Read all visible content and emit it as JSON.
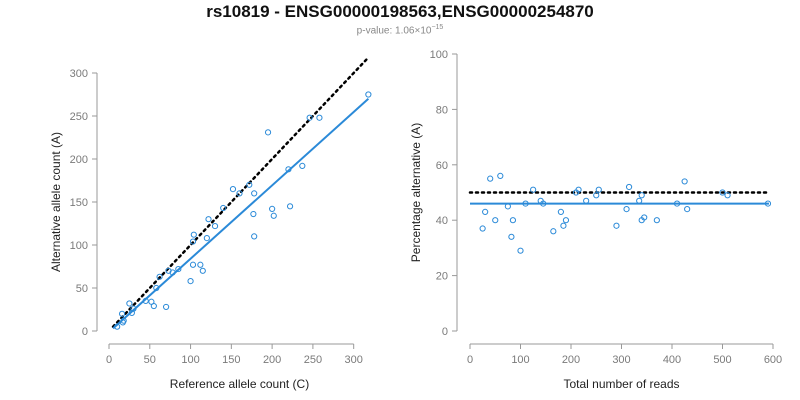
{
  "title": "rs10819 - ENSG00000198563,ENSG00000254870",
  "subtitle": {
    "prefix": "p-value: 1.06×10",
    "exponent": "−15"
  },
  "colors": {
    "series": "#2b8ad8",
    "reference": "#000000",
    "axis": "#999999"
  },
  "chart_data": [
    {
      "type": "scatter",
      "xlabel": "Reference allele count (C)",
      "ylabel": "Alternative allele count (A)",
      "xlim": [
        0,
        320
      ],
      "ylim": [
        0,
        300
      ],
      "xticks": [
        0,
        50,
        100,
        150,
        200,
        250,
        300
      ],
      "yticks": [
        0,
        50,
        100,
        150,
        200,
        250,
        300
      ],
      "grid": false,
      "points": [
        [
          10,
          5
        ],
        [
          16,
          20
        ],
        [
          18,
          12
        ],
        [
          17,
          10
        ],
        [
          25,
          32
        ],
        [
          28,
          21
        ],
        [
          30,
          26
        ],
        [
          45,
          35
        ],
        [
          52,
          34
        ],
        [
          55,
          29
        ],
        [
          58,
          50
        ],
        [
          62,
          63
        ],
        [
          70,
          28
        ],
        [
          73,
          70
        ],
        [
          78,
          68
        ],
        [
          85,
          72
        ],
        [
          100,
          58
        ],
        [
          103,
          104
        ],
        [
          104,
          112
        ],
        [
          103,
          77
        ],
        [
          112,
          77
        ],
        [
          115,
          70
        ],
        [
          120,
          108
        ],
        [
          122,
          130
        ],
        [
          130,
          122
        ],
        [
          140,
          143
        ],
        [
          152,
          165
        ],
        [
          160,
          160
        ],
        [
          172,
          170
        ],
        [
          177,
          136
        ],
        [
          178,
          110
        ],
        [
          178,
          160
        ],
        [
          195,
          231
        ],
        [
          200,
          142
        ],
        [
          202,
          134
        ],
        [
          220,
          188
        ],
        [
          222,
          145
        ],
        [
          237,
          192
        ],
        [
          246,
          248
        ],
        [
          258,
          248
        ],
        [
          318,
          275
        ]
      ],
      "fit_line": {
        "x": [
          5,
          318
        ],
        "y": [
          3,
          270
        ]
      },
      "reference_line": {
        "x": [
          5,
          318
        ],
        "y": [
          5,
          318
        ]
      }
    },
    {
      "type": "scatter",
      "xlabel": "Total number of reads",
      "ylabel": "Percentage alternative (A)",
      "xlim": [
        0,
        600
      ],
      "ylim": [
        0,
        100
      ],
      "xticks": [
        0,
        100,
        200,
        300,
        400,
        500,
        600
      ],
      "yticks": [
        0,
        20,
        40,
        60,
        80,
        100
      ],
      "grid": false,
      "points": [
        [
          25,
          37
        ],
        [
          30,
          43
        ],
        [
          40,
          55
        ],
        [
          50,
          40
        ],
        [
          60,
          56
        ],
        [
          75,
          45
        ],
        [
          82,
          34
        ],
        [
          85,
          40
        ],
        [
          100,
          29
        ],
        [
          110,
          46
        ],
        [
          125,
          51
        ],
        [
          140,
          47
        ],
        [
          145,
          46
        ],
        [
          165,
          36
        ],
        [
          180,
          43
        ],
        [
          185,
          38
        ],
        [
          190,
          40
        ],
        [
          210,
          50
        ],
        [
          215,
          51
        ],
        [
          230,
          47
        ],
        [
          250,
          49
        ],
        [
          255,
          51
        ],
        [
          290,
          38
        ],
        [
          310,
          44
        ],
        [
          315,
          52
        ],
        [
          335,
          47
        ],
        [
          340,
          40
        ],
        [
          345,
          41
        ],
        [
          340,
          49
        ],
        [
          370,
          40
        ],
        [
          410,
          46
        ],
        [
          425,
          54
        ],
        [
          430,
          44
        ],
        [
          500,
          50
        ],
        [
          510,
          49
        ],
        [
          590,
          46
        ]
      ],
      "fit_line": {
        "x": [
          0,
          592
        ],
        "y": [
          46,
          46
        ]
      },
      "reference_line": {
        "x": [
          0,
          592
        ],
        "y": [
          50,
          50
        ]
      }
    }
  ]
}
